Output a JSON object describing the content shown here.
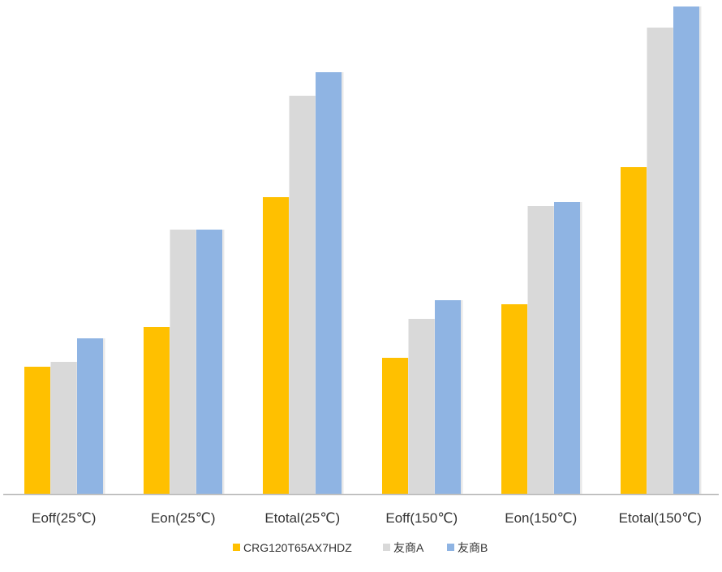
{
  "chart_data": {
    "type": "bar",
    "title": "",
    "xlabel": "",
    "ylabel": "",
    "categories": [
      "Eoff(25℃)",
      "Eon(25℃)",
      "Etotal(25℃)",
      "Eoff(150℃)",
      "Eon(150℃)",
      "Etotal(150℃)"
    ],
    "series": [
      {
        "name": "CRG120T65AX7HDZ",
        "color": "#FFC000",
        "values": [
          157,
          206,
          366,
          168,
          234,
          403
        ]
      },
      {
        "name": "友商A",
        "color": "#D9D9D9",
        "values": [
          163,
          326,
          491,
          216,
          355,
          575
        ]
      },
      {
        "name": "友商B",
        "color": "#8FB4E3",
        "values": [
          192,
          326,
          520,
          239,
          360,
          601
        ]
      }
    ],
    "ylim": [
      0,
      601
    ],
    "grid": false,
    "y_axis_visible": false,
    "legend_position": "bottom"
  }
}
